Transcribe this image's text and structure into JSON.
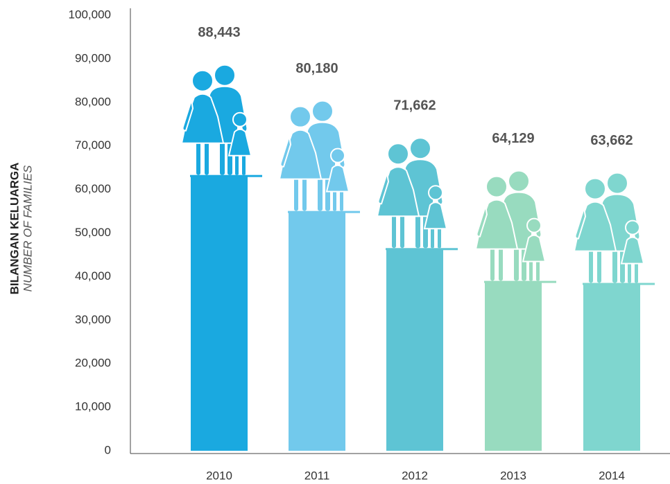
{
  "chart_data": {
    "type": "pictogram-bar",
    "axis_title": "BILANGAN KELUARGA",
    "axis_subtitle": "NUMBER OF FAMILIES",
    "categories": [
      "2010",
      "2011",
      "2012",
      "2013",
      "2014"
    ],
    "values": [
      88443,
      80180,
      71662,
      64129,
      63662
    ],
    "value_labels": [
      "88,443",
      "80,180",
      "71,662",
      "64,129",
      "63,662"
    ],
    "colors": [
      "#1aa9e0",
      "#72c9ec",
      "#5ec4d4",
      "#98dbbf",
      "#7fd6cf"
    ],
    "ylim": [
      0,
      100000
    ],
    "yticks": [
      0,
      {
        "value": 10000,
        "label": "10,000"
      },
      {
        "value": 20000,
        "label": "20,000"
      },
      {
        "value": 30000,
        "label": "30,000"
      },
      {
        "value": 40000,
        "label": "40,000"
      },
      {
        "value": 50000,
        "label": "50,000"
      },
      {
        "value": 60000,
        "label": "60,000"
      },
      {
        "value": 70000,
        "label": "70,000"
      },
      {
        "value": 80000,
        "label": "80,000"
      },
      {
        "value": 90000,
        "label": "90,000"
      },
      {
        "value": 100000,
        "label": "100,000"
      }
    ]
  }
}
